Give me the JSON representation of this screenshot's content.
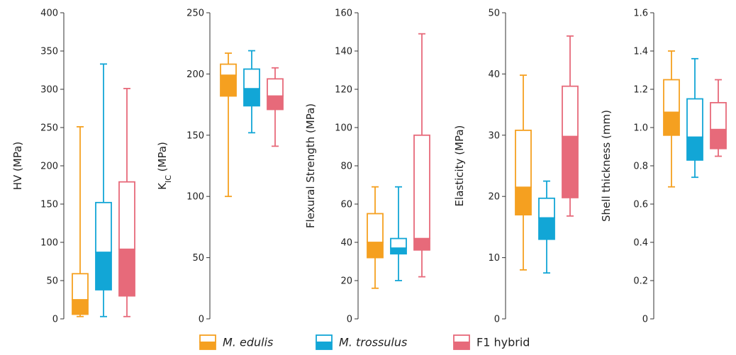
{
  "colors": {
    "M. edulis": "#F5A020",
    "M. trossulus": "#12A6D6",
    "F1 hybrid": "#E76A7A"
  },
  "legend": {
    "placement": "bottom-center",
    "items": [
      {
        "label": "M. edulis",
        "italic": true,
        "color_key": "M. edulis"
      },
      {
        "label": "M. trossulus",
        "italic": true,
        "color_key": "M. trossulus"
      },
      {
        "label": "F1 hybrid",
        "italic": false,
        "color_key": "F1 hybrid"
      }
    ]
  },
  "chart_data": [
    {
      "type": "box",
      "ylabel": "HV (MPa)",
      "ylim": [
        0,
        400
      ],
      "yticks": [
        0,
        50,
        100,
        150,
        200,
        250,
        300,
        350,
        400
      ],
      "tick_labels": [
        "0",
        "50",
        "100",
        "150",
        "200",
        "250",
        "300",
        "350",
        "400"
      ],
      "grid": false,
      "series": [
        {
          "name": "M. edulis",
          "min": 3,
          "q1": 6,
          "median": 25,
          "q3": 59,
          "max": 251
        },
        {
          "name": "M. trossulus",
          "min": 3,
          "q1": 38,
          "median": 87,
          "q3": 152,
          "max": 333
        },
        {
          "name": "F1 hybrid",
          "min": 3,
          "q1": 30,
          "median": 91,
          "q3": 179,
          "max": 301
        }
      ]
    },
    {
      "type": "box",
      "ylabel_main": "K",
      "ylabel_sub": "IC",
      "ylabel_tail": " (MPa)",
      "ylim": [
        0,
        250
      ],
      "yticks": [
        0,
        50,
        100,
        150,
        200,
        250
      ],
      "tick_labels": [
        "0",
        "50",
        "100",
        "150",
        "200",
        "250"
      ],
      "grid": false,
      "series": [
        {
          "name": "M. edulis",
          "min": 100,
          "q1": 182,
          "median": 199,
          "q3": 208,
          "max": 217
        },
        {
          "name": "M. trossulus",
          "min": 152,
          "q1": 174,
          "median": 188,
          "q3": 204,
          "max": 219
        },
        {
          "name": "F1 hybrid",
          "min": 141,
          "q1": 171,
          "median": 182,
          "q3": 196,
          "max": 205
        }
      ]
    },
    {
      "type": "box",
      "ylabel": "Flexural Strength (MPa)",
      "ylim": [
        0,
        160
      ],
      "yticks": [
        0,
        20,
        40,
        60,
        80,
        100,
        120,
        140,
        160
      ],
      "tick_labels": [
        "0",
        "20",
        "40",
        "60",
        "80",
        "100",
        "120",
        "140",
        "160"
      ],
      "grid": false,
      "series": [
        {
          "name": "M. edulis",
          "min": 16,
          "q1": 32,
          "median": 40,
          "q3": 55,
          "max": 69
        },
        {
          "name": "M. trossulus",
          "min": 20,
          "q1": 34,
          "median": 37,
          "q3": 42,
          "max": 69
        },
        {
          "name": "F1 hybrid",
          "min": 22,
          "q1": 36,
          "median": 42,
          "q3": 96,
          "max": 149
        }
      ]
    },
    {
      "type": "box",
      "ylabel": "Elasticity (MPa)",
      "ylim": [
        0,
        50
      ],
      "yticks": [
        0,
        10,
        20,
        30,
        40,
        50
      ],
      "tick_labels": [
        "0",
        "10",
        "20",
        "30",
        "40",
        "50"
      ],
      "grid": false,
      "series": [
        {
          "name": "M. edulis",
          "min": 8,
          "q1": 17,
          "median": 21.5,
          "q3": 30.8,
          "max": 39.8
        },
        {
          "name": "M. trossulus",
          "min": 7.5,
          "q1": 13,
          "median": 16.5,
          "q3": 19.7,
          "max": 22.5
        },
        {
          "name": "F1 hybrid",
          "min": 16.8,
          "q1": 19.8,
          "median": 29.8,
          "q3": 38,
          "max": 46.2
        }
      ]
    },
    {
      "type": "box",
      "ylabel": "Shell thickness (mm)",
      "ylim": [
        0,
        1.6
      ],
      "yticks": [
        0,
        0.2,
        0.4,
        0.6,
        0.8,
        1.0,
        1.2,
        1.4,
        1.6
      ],
      "tick_labels": [
        "0",
        "0.2",
        "0.4",
        "0.6",
        "0.8",
        "1.0",
        "1.2",
        "1.4",
        "1.6"
      ],
      "grid": false,
      "series": [
        {
          "name": "M. edulis",
          "min": 0.69,
          "q1": 0.96,
          "median": 1.08,
          "q3": 1.25,
          "max": 1.4
        },
        {
          "name": "M. trossulus",
          "min": 0.74,
          "q1": 0.83,
          "median": 0.95,
          "q3": 1.15,
          "max": 1.36
        },
        {
          "name": "F1 hybrid",
          "min": 0.85,
          "q1": 0.89,
          "median": 0.99,
          "q3": 1.13,
          "max": 1.25
        }
      ]
    }
  ]
}
